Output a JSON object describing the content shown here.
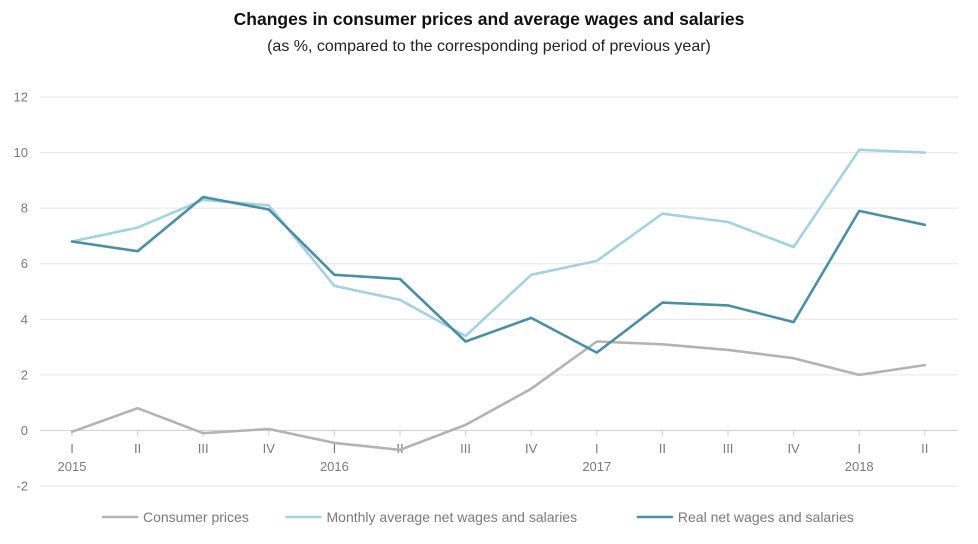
{
  "chart_data": {
    "type": "line",
    "title": "Changes in consumer prices and average wages and salaries",
    "subtitle": "(as %, compared to the corresponding period of previous year)",
    "x_quarters": [
      "I",
      "II",
      "III",
      "IV",
      "I",
      "II",
      "III",
      "IV",
      "I",
      "II",
      "III",
      "IV",
      "I",
      "II"
    ],
    "x_years": [
      {
        "label": "2015",
        "index": 0
      },
      {
        "label": "2016",
        "index": 4
      },
      {
        "label": "2017",
        "index": 8
      },
      {
        "label": "2018",
        "index": 12
      }
    ],
    "ylim": [
      -2,
      12
    ],
    "yticks": [
      -2,
      0,
      2,
      4,
      6,
      8,
      10,
      12
    ],
    "grid": true,
    "legend_position": "bottom",
    "series": [
      {
        "name": "Consumer prices",
        "color": "#b3b3b3",
        "values": [
          -0.05,
          0.8,
          -0.1,
          0.05,
          -0.45,
          -0.7,
          0.2,
          1.5,
          3.2,
          3.1,
          2.9,
          2.6,
          2.0,
          2.35
        ]
      },
      {
        "name": "Monthly average net wages and salaries",
        "color": "#a3d2e0",
        "values": [
          6.8,
          7.3,
          8.3,
          8.1,
          5.2,
          4.7,
          3.4,
          5.6,
          6.1,
          7.8,
          7.5,
          6.6,
          10.1,
          10.0
        ]
      },
      {
        "name": "Real net wages and salaries",
        "color": "#4a8fa3",
        "values": [
          6.8,
          6.45,
          8.4,
          7.95,
          5.6,
          5.45,
          3.2,
          4.05,
          2.8,
          4.6,
          4.5,
          3.9,
          7.9,
          7.4
        ]
      }
    ]
  }
}
